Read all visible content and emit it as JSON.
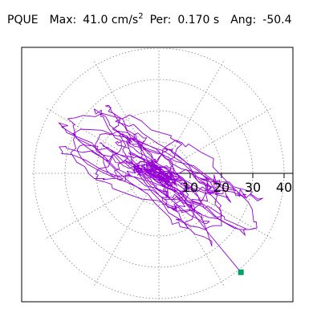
{
  "header": {
    "station": "PQUE",
    "max_label": "Max:",
    "max_value": "41.0 cm/s",
    "max_exp": "2",
    "per_label": "Per:",
    "per_value": "0.170 s",
    "ang_label": "Ang:",
    "ang_value": "-50.4"
  },
  "chart_data": {
    "type": "scatter",
    "subtype": "polar hodogram",
    "title": "PQUE Max: 41.0 cm/s2 Per: 0.170 s Ang: -50.4",
    "radial_ticks": [
      "10",
      "20",
      "30",
      "40"
    ],
    "radial_range": [
      0,
      45
    ],
    "rings": [
      10,
      20,
      30,
      40
    ],
    "spokes_deg": 30,
    "grid": true,
    "series": [
      {
        "color": "#9400d3",
        "type": "line"
      }
    ],
    "peak_marker": {
      "x": 26.2,
      "y": -31.6,
      "color": "#00a060"
    }
  }
}
